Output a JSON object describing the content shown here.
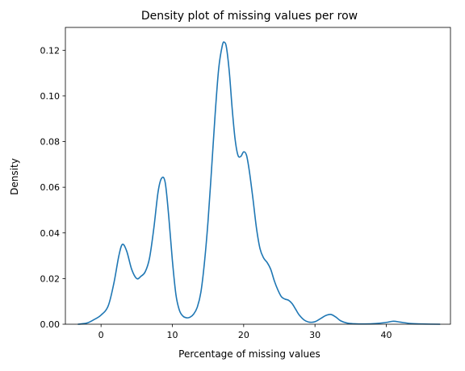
{
  "chart_data": {
    "type": "line",
    "title": "Density plot of missing values per row",
    "xlabel": "Percentage of missing values",
    "ylabel": "Density",
    "xlim": [
      -5,
      49
    ],
    "ylim": [
      0,
      0.13
    ],
    "x_ticks": [
      0,
      10,
      20,
      30,
      40
    ],
    "y_ticks": [
      0.0,
      0.02,
      0.04,
      0.06,
      0.08,
      0.1,
      0.12
    ],
    "y_tick_labels": [
      "0.00",
      "0.02",
      "0.04",
      "0.06",
      "0.08",
      "0.10",
      "0.12"
    ],
    "grid": false,
    "series": [
      {
        "color": "#1f77b4",
        "x": [
          -3.2,
          -2,
          -1,
          0,
          1,
          1.8,
          2.5,
          3,
          3.6,
          4.3,
          5,
          5.6,
          6.2,
          6.8,
          7.4,
          8,
          8.5,
          9,
          9.5,
          10,
          10.5,
          11,
          11.5,
          12,
          12.5,
          13,
          13.5,
          14,
          14.5,
          15,
          15.5,
          16,
          16.5,
          17,
          17.3,
          17.6,
          18,
          18.4,
          18.8,
          19.2,
          19.6,
          20,
          20.4,
          20.8,
          21.3,
          21.8,
          22.3,
          22.8,
          23.3,
          23.8,
          24.3,
          24.8,
          25.3,
          25.8,
          26.3,
          26.8,
          27.3,
          27.8,
          28.5,
          29.2,
          30,
          30.8,
          31.5,
          32.2,
          32.9,
          33.6,
          34.5,
          35.5,
          37,
          38.5,
          40,
          41,
          42,
          43.5,
          45,
          47.5
        ],
        "y": [
          0.0,
          0.0005,
          0.002,
          0.004,
          0.008,
          0.018,
          0.03,
          0.035,
          0.032,
          0.024,
          0.02,
          0.021,
          0.023,
          0.029,
          0.042,
          0.058,
          0.064,
          0.062,
          0.047,
          0.028,
          0.013,
          0.006,
          0.0035,
          0.0028,
          0.0031,
          0.0045,
          0.0075,
          0.014,
          0.027,
          0.045,
          0.068,
          0.092,
          0.112,
          0.122,
          0.1235,
          0.121,
          0.11,
          0.094,
          0.081,
          0.074,
          0.0735,
          0.0755,
          0.074,
          0.067,
          0.055,
          0.042,
          0.033,
          0.029,
          0.027,
          0.024,
          0.019,
          0.015,
          0.012,
          0.011,
          0.0105,
          0.009,
          0.0065,
          0.004,
          0.0018,
          0.0009,
          0.0011,
          0.0025,
          0.0038,
          0.0043,
          0.0032,
          0.0015,
          0.0005,
          0.0002,
          0.0001,
          0.0003,
          0.0008,
          0.0013,
          0.0009,
          0.0003,
          0.0001,
          0.0
        ]
      }
    ]
  }
}
